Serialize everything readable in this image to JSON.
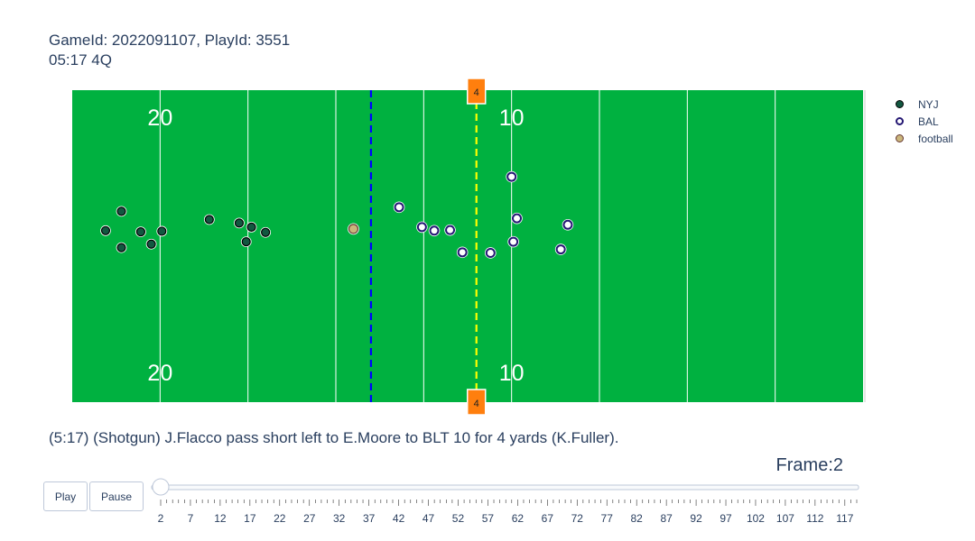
{
  "title": {
    "line1": "GameId: 2022091107, PlayId: 3551",
    "line2": "05:17 4Q"
  },
  "caption": "(5:17) (Shotgun) J.Flacco pass short left to E.Moore to BLT 10 for 4 yards (K.Fuller).",
  "frame": {
    "label": "Frame:2",
    "current": 2
  },
  "controls": {
    "play_label": "Play",
    "pause_label": "Pause"
  },
  "legend": [
    {
      "name": "NYJ",
      "fill": "#125740",
      "stroke": "#000000"
    },
    {
      "name": "BAL",
      "fill": "#ffffff",
      "stroke": "#241773"
    },
    {
      "name": "football",
      "fill": "#cbb67c",
      "stroke": "#663831"
    }
  ],
  "colors": {
    "field": "#00b140",
    "line_of_scrimmage": "#0000ff",
    "first_down_line": "#ffff00",
    "marker": "#ff7f0e"
  },
  "slider": {
    "min": 2,
    "max": 119,
    "ticks": [
      2,
      7,
      12,
      17,
      22,
      27,
      32,
      37,
      42,
      47,
      52,
      57,
      62,
      67,
      72,
      77,
      82,
      87,
      92,
      97,
      102,
      107,
      112,
      117
    ]
  },
  "chart_data": {
    "type": "scatter",
    "xlim": [
      50,
      95
    ],
    "ylim": [
      0,
      53.3
    ],
    "yard_lines": [
      55,
      60,
      65,
      70,
      75,
      80,
      85,
      90,
      95
    ],
    "yard_numbers": [
      {
        "x": 55,
        "label": "20"
      },
      {
        "x": 75,
        "label": "10"
      }
    ],
    "line_of_scrimmage": 67,
    "first_down": 73,
    "series": [
      {
        "name": "NYJ",
        "points": [
          [
            51.9,
            29.3
          ],
          [
            52.8,
            32.6
          ],
          [
            52.8,
            26.4
          ],
          [
            53.9,
            29.1
          ],
          [
            54.5,
            27.0
          ],
          [
            55.1,
            29.2
          ],
          [
            57.8,
            31.2
          ],
          [
            59.5,
            30.6
          ],
          [
            60.2,
            29.9
          ],
          [
            59.9,
            27.4
          ],
          [
            61.0,
            29.0
          ]
        ]
      },
      {
        "name": "BAL",
        "points": [
          [
            68.6,
            33.3
          ],
          [
            69.9,
            29.9
          ],
          [
            70.6,
            29.3
          ],
          [
            71.5,
            29.4
          ],
          [
            72.2,
            25.6
          ],
          [
            73.8,
            25.5
          ],
          [
            75.0,
            38.5
          ],
          [
            75.1,
            27.4
          ],
          [
            75.3,
            31.4
          ],
          [
            77.8,
            26.1
          ],
          [
            78.2,
            30.3
          ]
        ]
      },
      {
        "name": "football",
        "points": [
          [
            66.0,
            29.6
          ]
        ]
      }
    ]
  }
}
